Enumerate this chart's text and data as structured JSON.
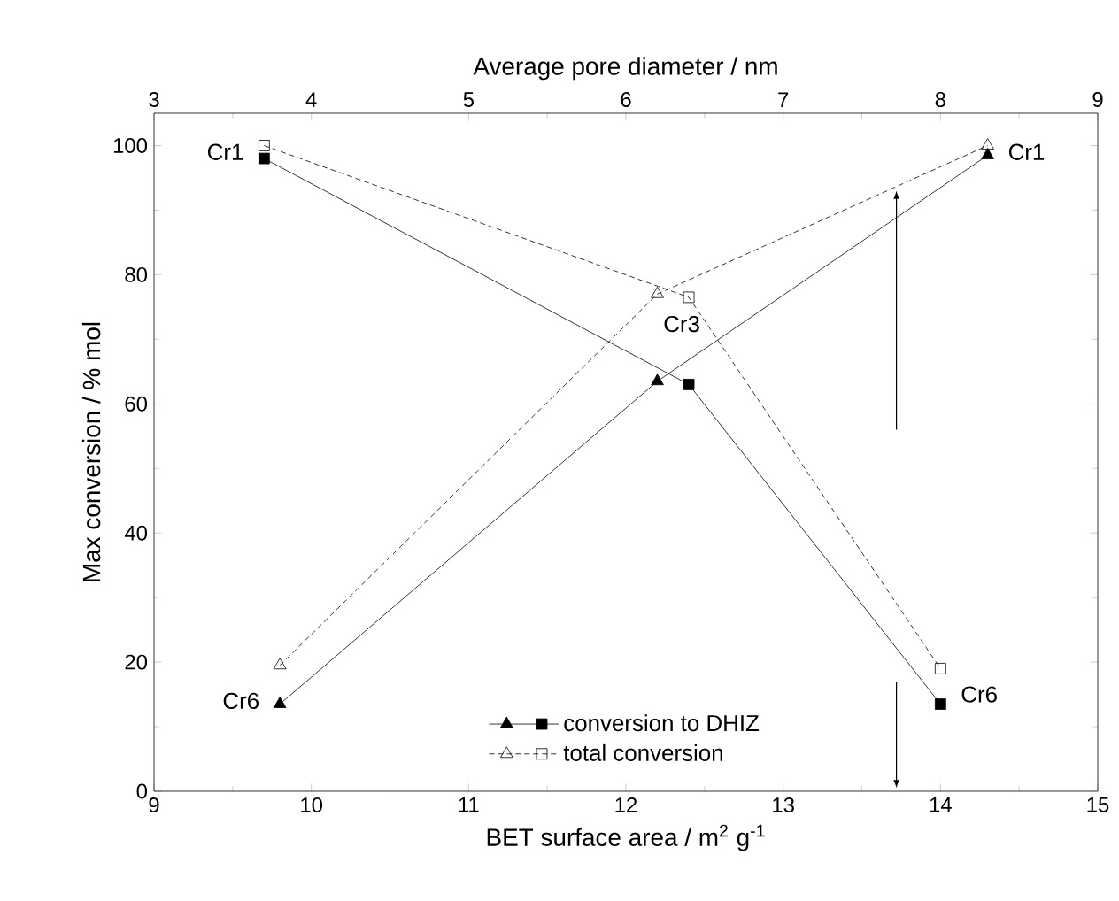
{
  "chart_data": {
    "type": "line",
    "xlabel": "BET surface area / m$^{2}$ g$^{-1}$",
    "x2label": "Average pore diameter / nm",
    "ylabel": "Max conversion / % mol",
    "xlim": [
      9,
      15
    ],
    "xticks": [
      9,
      10,
      11,
      12,
      13,
      14,
      15
    ],
    "x2lim": [
      3,
      9
    ],
    "x2ticks": [
      3,
      4,
      5,
      6,
      7,
      8,
      9
    ],
    "ylim": [
      0,
      105
    ],
    "yticks": [
      0,
      20,
      40,
      60,
      80,
      100
    ],
    "legend": "bottom",
    "series": [
      {
        "name": "conversion to DHIZ",
        "color": "#000000",
        "axis": "x2",
        "marker": "triangle",
        "line_style": "solid",
        "x": [
          3.8,
          6.2,
          8.3
        ],
        "values": [
          13.5,
          63.5,
          98.5
        ]
      },
      {
        "color": "#000000",
        "marker": "square",
        "line_style": "solid",
        "x": [
          9.7,
          12.4,
          14.0
        ],
        "values": [
          98,
          63,
          13.5
        ]
      },
      {
        "name": "total conversion",
        "color": "#000000",
        "axis": "x2",
        "marker": "triangle",
        "line_style": "dashed",
        "x": [
          3.8,
          6.2,
          8.3
        ],
        "values": [
          19.5,
          77,
          100
        ]
      },
      {
        "color": "#000000",
        "marker": "square",
        "line_style": "dashed",
        "x": [
          9.7,
          12.4,
          14.0
        ],
        "values": [
          100,
          76.5,
          19
        ]
      }
    ],
    "annotations": [
      {
        "text": "Cr1",
        "x": 9.7,
        "y": 99
      },
      {
        "text": "Cr1",
        "x": 14.3,
        "y": 99
      },
      {
        "text": "Cr3",
        "x": 12.4,
        "y": 76.5
      },
      {
        "text": "Cr6",
        "x": 9.8,
        "y": 14
      },
      {
        "text": "Cr6",
        "x": 14.0,
        "y": 15
      }
    ]
  }
}
